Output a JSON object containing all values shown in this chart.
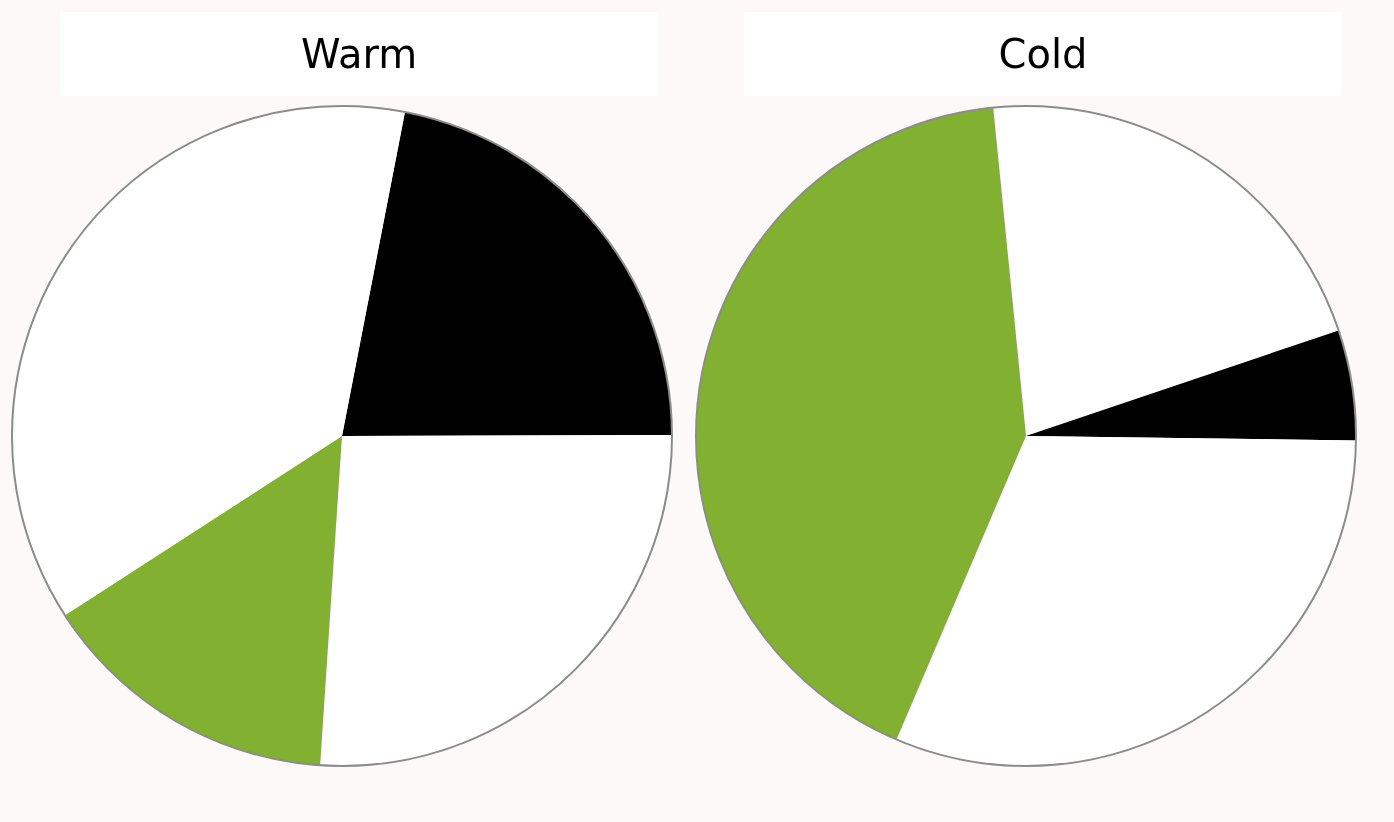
{
  "chart_data": [
    {
      "type": "pie",
      "title": "Warm",
      "categories": [
        null,
        null,
        null,
        null
      ],
      "values": [
        21.9,
        26.1,
        14.8,
        37.2
      ],
      "colors": [
        "#000000",
        "#ffffff",
        "#82b031",
        "#ffffff"
      ],
      "legend": false
    },
    {
      "type": "pie",
      "title": "Cold",
      "categories": [
        null,
        null,
        null,
        null
      ],
      "values": [
        21.4,
        5.4,
        31.2,
        42.0
      ],
      "colors": [
        "#ffffff",
        "#000000",
        "#ffffff",
        "#82b031"
      ],
      "legend": false
    }
  ]
}
